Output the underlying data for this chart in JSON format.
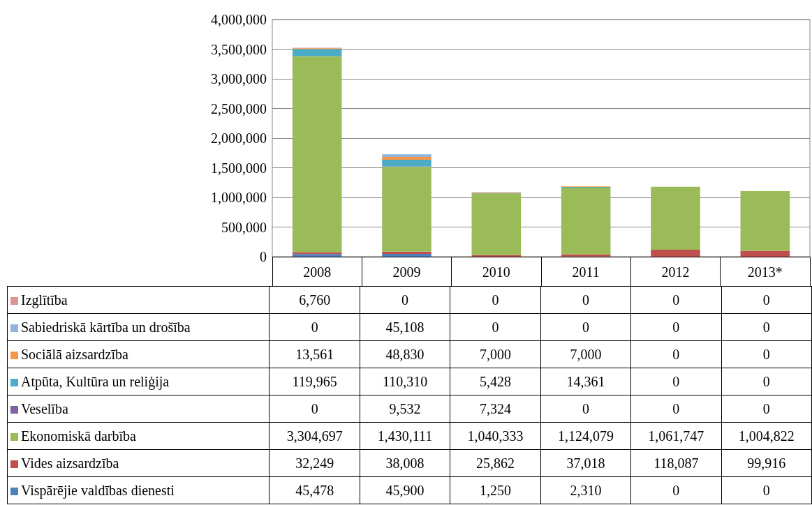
{
  "chart_data": {
    "type": "bar",
    "stacked": true,
    "categories": [
      "2008",
      "2009",
      "2010",
      "2011",
      "2012",
      "2013*"
    ],
    "series": [
      {
        "name": "Vispārējie valdības dienesti",
        "color": "#4f81bd",
        "values": [
          45478,
          45900,
          1250,
          2310,
          0,
          0
        ],
        "value_labels": [
          "45,478",
          "45,900",
          "1,250",
          "2,310",
          "0",
          "0"
        ]
      },
      {
        "name": "Vides aizsardzība",
        "color": "#c0504d",
        "values": [
          32249,
          38008,
          25862,
          37018,
          118087,
          99916
        ],
        "value_labels": [
          "32,249",
          "38,008",
          "25,862",
          "37,018",
          "118,087",
          "99,916"
        ]
      },
      {
        "name": "Ekonomiskā darbība",
        "color": "#9bbb59",
        "values": [
          3304697,
          1430111,
          1040333,
          1124079,
          1061747,
          1004822
        ],
        "value_labels": [
          "3,304,697",
          "1,430,111",
          "1,040,333",
          "1,124,079",
          "1,061,747",
          "1,004,822"
        ]
      },
      {
        "name": "Veselība",
        "color": "#8064a2",
        "values": [
          0,
          9532,
          7324,
          0,
          0,
          0
        ],
        "value_labels": [
          "0",
          "9,532",
          "7,324",
          "0",
          "0",
          "0"
        ]
      },
      {
        "name": "Atpūta, Kultūra un reliģija",
        "color": "#4bacc6",
        "values": [
          119965,
          110310,
          5428,
          14361,
          0,
          0
        ],
        "value_labels": [
          "119,965",
          "110,310",
          "5,428",
          "14,361",
          "0",
          "0"
        ]
      },
      {
        "name": "Sociālā aizsardzība",
        "color": "#f79646",
        "values": [
          13561,
          48830,
          7000,
          7000,
          0,
          0
        ],
        "value_labels": [
          "13,561",
          "48,830",
          "7,000",
          "7,000",
          "0",
          "0"
        ]
      },
      {
        "name": "Sabiedriskā kārtība un drošība",
        "color": "#95b3d7",
        "values": [
          0,
          45108,
          0,
          0,
          0,
          0
        ],
        "value_labels": [
          "0",
          "45,108",
          "0",
          "0",
          "0",
          "0"
        ]
      },
      {
        "name": "Izglītība",
        "color": "#d99694",
        "values": [
          6760,
          0,
          0,
          0,
          0,
          0
        ],
        "value_labels": [
          "6,760",
          "0",
          "0",
          "0",
          "0",
          "0"
        ]
      }
    ],
    "ylim": [
      0,
      4000000
    ],
    "yticks": [
      0,
      {
        "value": 500000,
        "label": "500,000"
      },
      {
        "value": 1000000,
        "label": "1,000,000"
      },
      {
        "value": 1500000,
        "label": "1,500,000"
      },
      {
        "value": 2000000,
        "label": "2,000,000"
      },
      {
        "value": 2500000,
        "label": "2,500,000"
      },
      {
        "value": 3000000,
        "label": "3,000,000"
      },
      {
        "value": 3500000,
        "label": "3,500,000"
      },
      {
        "value": 4000000,
        "label": "4,000,000"
      }
    ],
    "grid": "y",
    "legend": "bottom"
  }
}
